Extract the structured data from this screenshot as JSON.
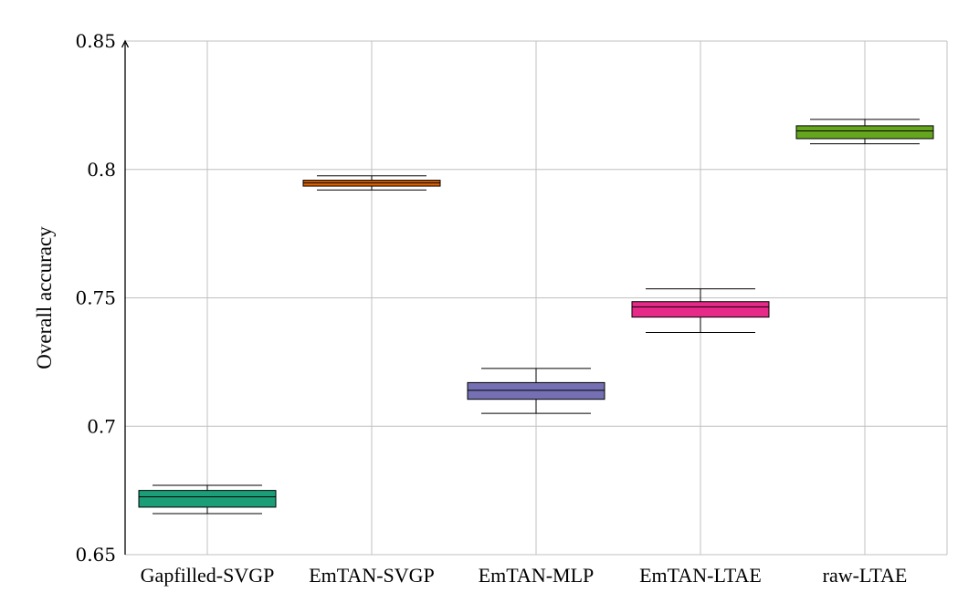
{
  "chart_data": {
    "type": "box",
    "ylabel": "Overall accuracy",
    "ylim": [
      0.65,
      0.85
    ],
    "yticks": [
      "0.65",
      "0.7",
      "0.75",
      "0.8",
      "0.85"
    ],
    "grid": true,
    "categories": [
      "Gapfilled-SVGP",
      "EmTAN-SVGP",
      "EmTAN-MLP",
      "EmTAN-LTAE",
      "raw-LTAE"
    ],
    "boxes": [
      {
        "category": "Gapfilled-SVGP",
        "whisker_low": 0.666,
        "q1": 0.6685,
        "median": 0.6725,
        "q3": 0.675,
        "whisker_high": 0.677,
        "color": "#1b9e77"
      },
      {
        "category": "EmTAN-SVGP",
        "whisker_low": 0.792,
        "q1": 0.7935,
        "median": 0.7948,
        "q3": 0.7958,
        "whisker_high": 0.7975,
        "color": "#d95f02"
      },
      {
        "category": "EmTAN-MLP",
        "whisker_low": 0.705,
        "q1": 0.7105,
        "median": 0.714,
        "q3": 0.717,
        "whisker_high": 0.7225,
        "color": "#7570b3"
      },
      {
        "category": "EmTAN-LTAE",
        "whisker_low": 0.7365,
        "q1": 0.7425,
        "median": 0.7465,
        "q3": 0.7485,
        "whisker_high": 0.7535,
        "color": "#e7298a"
      },
      {
        "category": "raw-LTAE",
        "whisker_low": 0.81,
        "q1": 0.812,
        "median": 0.815,
        "q3": 0.817,
        "whisker_high": 0.8195,
        "color": "#66a61e"
      }
    ]
  }
}
